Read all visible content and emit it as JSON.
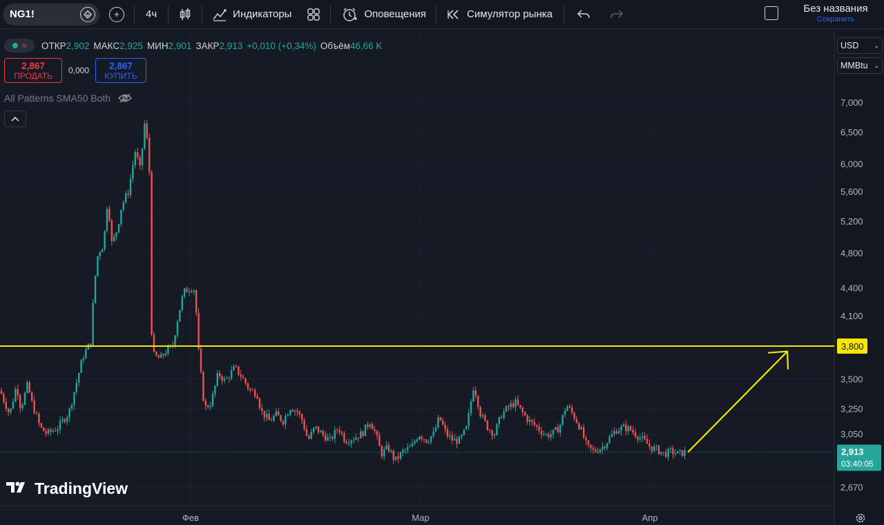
{
  "toolbar": {
    "symbol": "NG1!",
    "interval": "4ч",
    "indicators_label": "Индикаторы",
    "alerts_label": "Оповещения",
    "replay_label": "Симулятор рынка",
    "layout_title": "Без названия",
    "save_label": "Сохранить"
  },
  "legend": {
    "open_label": "ОТКР",
    "open": "2,902",
    "high_label": "МАКС",
    "high": "2,925",
    "low_label": "МИН",
    "low": "2,901",
    "close_label": "ЗАКР",
    "close": "2,913",
    "change": "+0,010 (+0,34%)",
    "volume_label": "Объём",
    "volume": "46,66 K"
  },
  "trade": {
    "sell_price": "2,867",
    "sell_label": "ПРОДАТЬ",
    "spread": "0,000",
    "buy_price": "2,867",
    "buy_label": "КУПИТЬ"
  },
  "indicator_name": "All Patterns SMA50 Both",
  "watermark": "TradingView",
  "price_axis": {
    "currency": "USD",
    "unit": "MMBtu",
    "ticks": [
      "7,000",
      "6,500",
      "6,000",
      "5,600",
      "5,200",
      "4,800",
      "4,400",
      "4,100",
      "3,500",
      "3,250",
      "3,050",
      "2,670"
    ],
    "hline_label": "3,800",
    "last_price": "2,913",
    "countdown": "03:40:05"
  },
  "time_axis": {
    "ticks": [
      "Фев",
      "Мар",
      "Апр"
    ]
  },
  "colors": {
    "background": "#161a25",
    "up": "#26a69a",
    "down": "#ef5350",
    "hline": "#f5e50b",
    "arrow": "#f5e50b"
  },
  "chart_data": {
    "type": "candlestick",
    "symbol": "NG1!",
    "interval": "4ч",
    "log_scale": true,
    "y_ticks": [
      2.67,
      3.05,
      3.25,
      3.5,
      4.1,
      4.4,
      4.8,
      5.2,
      5.6,
      6.0,
      6.5,
      7.0
    ],
    "x_ticks": [
      "Фев",
      "Мар",
      "Апр"
    ],
    "horizontal_line": 3.8,
    "last_price": 2.913,
    "arrow": {
      "from": 2.913,
      "to": 3.75
    },
    "grid": true,
    "close_path": [
      [
        0,
        3.4
      ],
      [
        14,
        3.2
      ],
      [
        24,
        3.45
      ],
      [
        30,
        3.25
      ],
      [
        40,
        3.45
      ],
      [
        46,
        3.3
      ],
      [
        58,
        3.1
      ],
      [
        68,
        3.05
      ],
      [
        84,
        3.1
      ],
      [
        100,
        3.22
      ],
      [
        110,
        3.45
      ],
      [
        120,
        3.7
      ],
      [
        132,
        3.85
      ],
      [
        136,
        4.4
      ],
      [
        142,
        4.8
      ],
      [
        150,
        4.9
      ],
      [
        156,
        5.5
      ],
      [
        162,
        4.9
      ],
      [
        170,
        5.1
      ],
      [
        176,
        5.4
      ],
      [
        186,
        5.6
      ],
      [
        196,
        6.2
      ],
      [
        203,
        5.9
      ],
      [
        210,
        6.7
      ],
      [
        216,
        6.0
      ],
      [
        220,
        3.72
      ],
      [
        232,
        3.68
      ],
      [
        240,
        3.75
      ],
      [
        250,
        3.8
      ],
      [
        258,
        4.1
      ],
      [
        266,
        4.35
      ],
      [
        276,
        4.4
      ],
      [
        282,
        4.38
      ],
      [
        288,
        3.7
      ],
      [
        296,
        3.25
      ],
      [
        306,
        3.3
      ],
      [
        316,
        3.55
      ],
      [
        326,
        3.48
      ],
      [
        340,
        3.6
      ],
      [
        350,
        3.52
      ],
      [
        362,
        3.4
      ],
      [
        372,
        3.38
      ],
      [
        378,
        3.23
      ],
      [
        390,
        3.15
      ],
      [
        400,
        3.2
      ],
      [
        410,
        3.15
      ],
      [
        420,
        3.26
      ],
      [
        430,
        3.23
      ],
      [
        438,
        3.15
      ],
      [
        446,
        3.0
      ],
      [
        456,
        3.1
      ],
      [
        466,
        3.05
      ],
      [
        478,
        3.0
      ],
      [
        490,
        3.1
      ],
      [
        500,
        3.0
      ],
      [
        512,
        3.02
      ],
      [
        524,
        3.05
      ],
      [
        536,
        3.15
      ],
      [
        544,
        3.05
      ],
      [
        552,
        2.9
      ],
      [
        562,
        2.95
      ],
      [
        572,
        2.85
      ],
      [
        584,
        2.92
      ],
      [
        596,
        2.95
      ],
      [
        606,
        3.05
      ],
      [
        618,
        3.0
      ],
      [
        628,
        3.05
      ],
      [
        636,
        3.18
      ],
      [
        646,
        3.05
      ],
      [
        656,
        3.0
      ],
      [
        666,
        3.0
      ],
      [
        676,
        3.1
      ],
      [
        686,
        3.45
      ],
      [
        696,
        3.2
      ],
      [
        706,
        3.1
      ],
      [
        716,
        3.05
      ],
      [
        726,
        3.2
      ],
      [
        736,
        3.26
      ],
      [
        746,
        3.3
      ],
      [
        756,
        3.22
      ],
      [
        766,
        3.15
      ],
      [
        778,
        3.1
      ],
      [
        790,
        3.04
      ],
      [
        800,
        3.05
      ],
      [
        810,
        3.1
      ],
      [
        820,
        3.28
      ],
      [
        830,
        3.2
      ],
      [
        840,
        3.1
      ],
      [
        850,
        2.95
      ],
      [
        860,
        2.92
      ],
      [
        872,
        2.95
      ],
      [
        880,
        3.0
      ],
      [
        892,
        3.08
      ],
      [
        904,
        3.1
      ],
      [
        914,
        3.08
      ],
      [
        920,
        3.05
      ],
      [
        932,
        3.0
      ],
      [
        942,
        2.95
      ],
      [
        952,
        2.93
      ],
      [
        962,
        2.9
      ],
      [
        972,
        2.92
      ],
      [
        982,
        2.9
      ],
      [
        992,
        2.913
      ]
    ]
  }
}
